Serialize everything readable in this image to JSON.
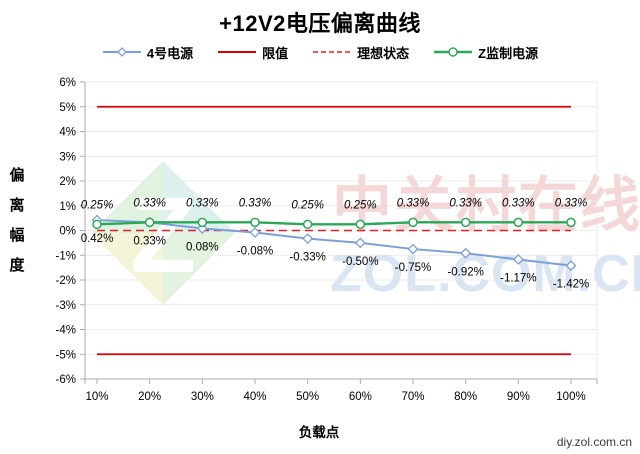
{
  "page": {
    "footer_site": "diy.zol.com.cn"
  },
  "watermark": {
    "line1": "中关村在线",
    "line2": "ZOL.COM.CN",
    "line1_color": "#f4d8d8",
    "line2_color": "#d9e5f3",
    "logo_colors": [
      "#dff3df",
      "#dcf1ee",
      "#f6f4d8",
      "#e4f3e0"
    ]
  },
  "chart_data": {
    "type": "line",
    "title": "+12V2电压偏离曲线",
    "xlabel": "负载点",
    "ylabel": "偏离幅度",
    "ylabel_chars": [
      "偏",
      "离",
      "幅",
      "度"
    ],
    "categories": [
      "10%",
      "20%",
      "30%",
      "40%",
      "50%",
      "60%",
      "70%",
      "80%",
      "90%",
      "100%"
    ],
    "ylim": [
      -6,
      6
    ],
    "y_tick_step": 1,
    "y_tick_labels": [
      "6%",
      "5%",
      "4%",
      "3%",
      "2%",
      "1%",
      "0%",
      "-1%",
      "-2%",
      "-3%",
      "-4%",
      "-5%",
      "-6%"
    ],
    "grid": "horizontal-only",
    "legend_position": "top",
    "series": [
      {
        "id": "supply4",
        "name": "4号电源",
        "kind": "data-line",
        "color": "#7ba0d6",
        "marker": "diamond",
        "label_pos": "below",
        "label_style": "normal",
        "values": [
          0.42,
          0.33,
          0.08,
          -0.08,
          -0.33,
          -0.5,
          -0.75,
          -0.92,
          -1.17,
          -1.42
        ],
        "labels": [
          "0.42%",
          "0.33%",
          "0.08%",
          "-0.08%",
          "-0.33%",
          "-0.50%",
          "-0.75%",
          "-0.92%",
          "-1.17%",
          "-1.42%"
        ]
      },
      {
        "id": "limit",
        "name": "限值",
        "kind": "const-lines",
        "color": "#d80000",
        "style": "solid",
        "const_values": [
          5,
          -5
        ]
      },
      {
        "id": "ideal",
        "name": "理想状态",
        "kind": "const-lines",
        "color": "#ed1c24",
        "style": "dashed",
        "const_values": [
          0
        ]
      },
      {
        "id": "zmonitor",
        "name": "Z监制电源",
        "kind": "data-line",
        "color": "#2ba757",
        "marker": "circle",
        "label_pos": "above",
        "label_style": "italic",
        "values": [
          0.25,
          0.33,
          0.33,
          0.33,
          0.25,
          0.25,
          0.33,
          0.33,
          0.33,
          0.33
        ],
        "labels": [
          "0.25%",
          "0.33%",
          "0.33%",
          "0.33%",
          "0.25%",
          "0.25%",
          "0.33%",
          "0.33%",
          "0.33%",
          "0.33%"
        ]
      }
    ]
  }
}
